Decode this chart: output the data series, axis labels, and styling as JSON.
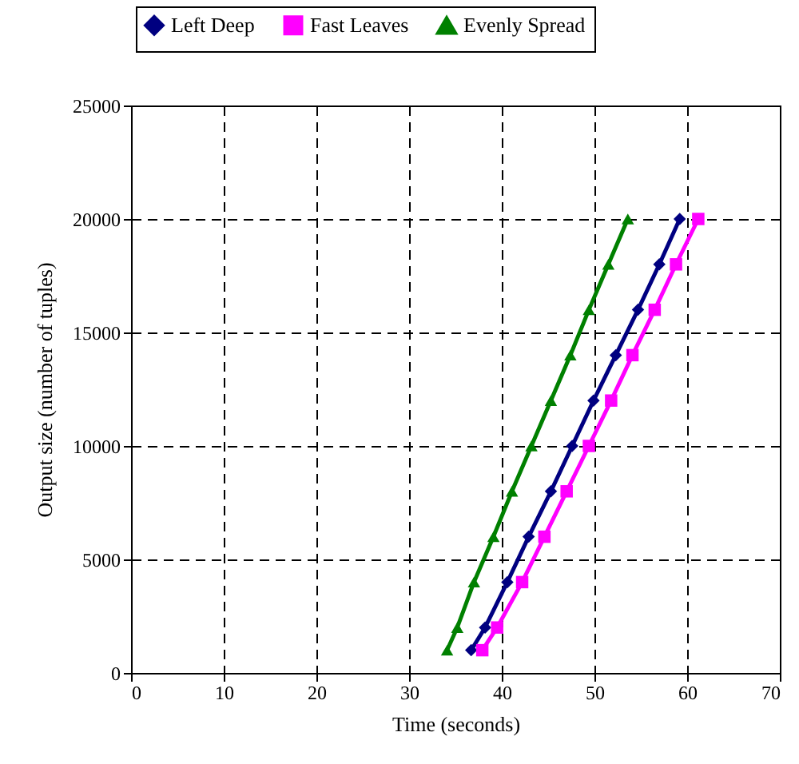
{
  "chart_data": {
    "type": "line",
    "xlabel": "Time (seconds)",
    "ylabel": "Output size (number of tuples)",
    "xlim": [
      0,
      70
    ],
    "xticks": [
      0,
      10,
      20,
      30,
      40,
      50,
      60,
      70
    ],
    "ylim": [
      0,
      25000
    ],
    "yticks": [
      0,
      5000,
      10000,
      15000,
      20000,
      25000
    ],
    "grid": true,
    "legend": "top",
    "line_style": "solid",
    "series": [
      {
        "name": "Left Deep",
        "color": "#000080",
        "marker": "diamond",
        "x": [
          36.7,
          38.2,
          40.6,
          42.9,
          45.3,
          47.6,
          49.9,
          52.3,
          54.7,
          57.0,
          59.2
        ],
        "values": [
          1000,
          2000,
          4000,
          6000,
          8000,
          10000,
          12000,
          14000,
          16000,
          18000,
          20000
        ]
      },
      {
        "name": "Fast Leaves",
        "color": "#ff00ff",
        "marker": "square",
        "x": [
          37.9,
          39.5,
          42.2,
          44.6,
          47.0,
          49.4,
          51.8,
          54.1,
          56.5,
          58.8,
          61.2
        ],
        "values": [
          1000,
          2000,
          4000,
          6000,
          8000,
          10000,
          12000,
          14000,
          16000,
          18000,
          20000
        ]
      },
      {
        "name": "Evenly Spread",
        "color": "#008000",
        "marker": "triangle",
        "x": [
          34.1,
          35.2,
          37.0,
          39.1,
          41.1,
          43.2,
          45.3,
          47.4,
          49.4,
          51.5,
          53.6
        ],
        "values": [
          1000,
          2000,
          4000,
          6000,
          8000,
          10000,
          12000,
          14000,
          16000,
          18000,
          20000
        ]
      }
    ]
  }
}
